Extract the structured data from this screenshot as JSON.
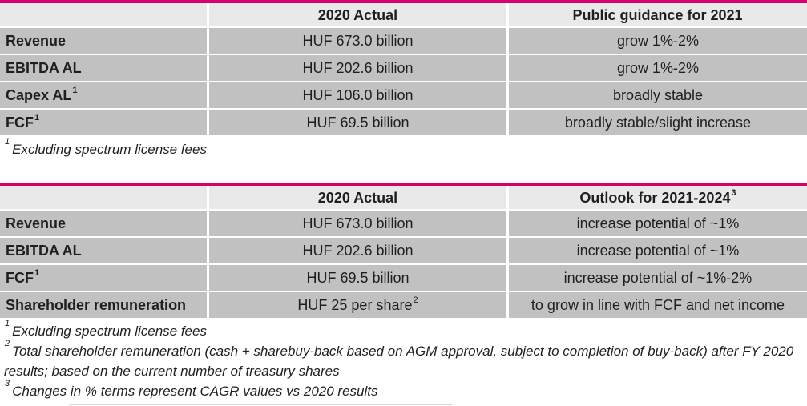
{
  "theme": {
    "accent_magenta": "#d6006e",
    "header_row_bg": "#e9e9e9",
    "data_row_bg": "#c1c1c1",
    "text_color": "#1f1f1f"
  },
  "table1": {
    "title": "Public guidance for 2021 table",
    "header": {
      "metric_label": "",
      "actual_label": "2020 Actual",
      "outlook_label": "Public guidance for 2021",
      "outlook_sup": ""
    },
    "rows": [
      {
        "label": "Revenue",
        "label_sup": "",
        "actual": "HUF 673.0 billion",
        "actual_sup": "",
        "outlook": "grow 1%-2%"
      },
      {
        "label": "EBITDA AL",
        "label_sup": "",
        "actual": "HUF 202.6 billion",
        "actual_sup": "",
        "outlook": "grow 1%-2%"
      },
      {
        "label": "Capex AL",
        "label_sup": "1",
        "actual": "HUF 106.0 billion",
        "actual_sup": "",
        "outlook": "broadly stable"
      },
      {
        "label": "FCF",
        "label_sup": "1",
        "actual": "HUF 69.5 billion",
        "actual_sup": "",
        "outlook": "broadly stable/slight increase"
      }
    ],
    "footnotes": [
      {
        "sup": "1",
        "text": "Excluding spectrum license fees"
      }
    ]
  },
  "table2": {
    "title": "Outlook for 2021-2024 table",
    "header": {
      "metric_label": "",
      "actual_label": "2020 Actual",
      "outlook_label": "Outlook for 2021-2024",
      "outlook_sup": "3"
    },
    "rows": [
      {
        "label": "Revenue",
        "label_sup": "",
        "actual": "HUF 673.0 billion",
        "actual_sup": "",
        "outlook": "increase potential of ~1%"
      },
      {
        "label": "EBITDA AL",
        "label_sup": "",
        "actual": "HUF 202.6 billion",
        "actual_sup": "",
        "outlook": "increase potential of ~1%"
      },
      {
        "label": "FCF",
        "label_sup": "1",
        "actual": "HUF 69.5 billion",
        "actual_sup": "",
        "outlook": "increase potential of ~1%-2%"
      },
      {
        "label": "Shareholder remuneration",
        "label_sup": "",
        "actual": "HUF 25 per share",
        "actual_sup": "2",
        "outlook": "to grow in line with FCF and net income"
      }
    ],
    "footnotes": [
      {
        "sup": "1",
        "text": "Excluding spectrum license fees"
      },
      {
        "sup": "2",
        "text": "Total shareholder remuneration (cash + sharebuy-back based on AGM approval, subject to completion of buy-back) after FY 2020 results; based on the current number of treasury shares"
      },
      {
        "sup": "3",
        "text": "Changes in % terms represent CAGR values vs 2020 results"
      }
    ]
  }
}
